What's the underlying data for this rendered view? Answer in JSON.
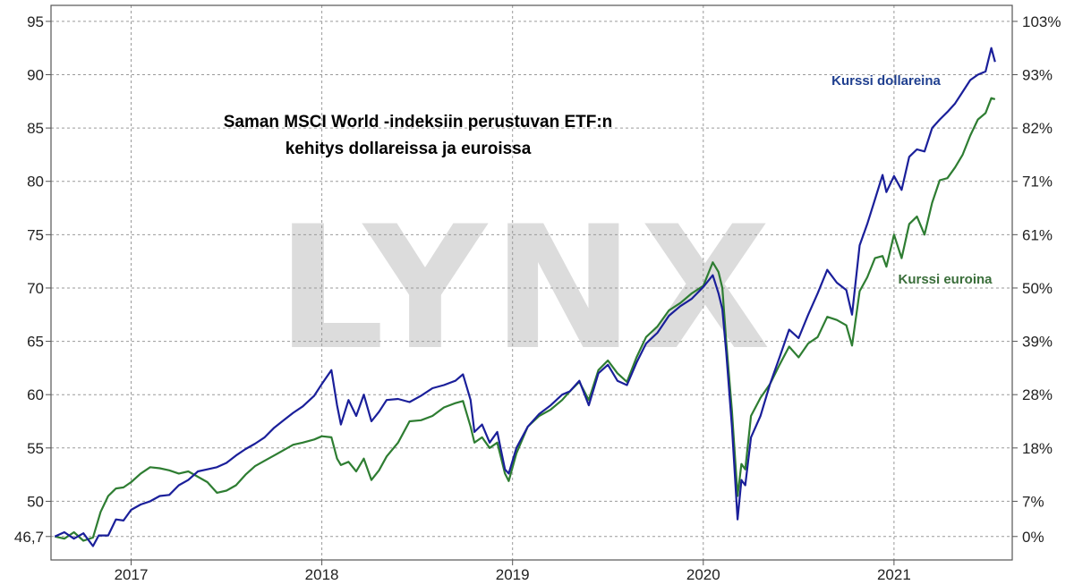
{
  "chart_data": {
    "type": "line",
    "title_line1": "Saman MSCI World -indeksiin perustuvan ETF:n",
    "title_line2": "kehitys dollareissa ja euroissa",
    "watermark": "LYNX",
    "x_ticks": [
      "2017",
      "2018",
      "2019",
      "2020",
      "2021"
    ],
    "y_left_ticks": [
      "95",
      "90",
      "85",
      "80",
      "75",
      "70",
      "65",
      "60",
      "55",
      "50",
      "46,7"
    ],
    "y_right_ticks": [
      "103%",
      "93%",
      "82%",
      "71%",
      "61%",
      "50%",
      "39%",
      "28%",
      "18%",
      "7%",
      "0%"
    ],
    "xlim": [
      2016.58,
      2021.62
    ],
    "ylim": [
      44.5,
      96.5
    ],
    "grid": true,
    "colors": {
      "usd": "#1a1f9a",
      "eur": "#2e7d32",
      "usd_label": "#1f3f8f",
      "eur_label": "#3a6e3a"
    },
    "series": [
      {
        "name": "Kurssi dollareina",
        "points": [
          [
            2016.6,
            46.7
          ],
          [
            2016.65,
            47.1
          ],
          [
            2016.7,
            46.5
          ],
          [
            2016.75,
            47.0
          ],
          [
            2016.8,
            45.8
          ],
          [
            2016.83,
            46.8
          ],
          [
            2016.88,
            46.8
          ],
          [
            2016.92,
            48.3
          ],
          [
            2016.96,
            48.2
          ],
          [
            2017.0,
            49.2
          ],
          [
            2017.05,
            49.7
          ],
          [
            2017.1,
            50.0
          ],
          [
            2017.15,
            50.5
          ],
          [
            2017.2,
            50.6
          ],
          [
            2017.25,
            51.5
          ],
          [
            2017.3,
            52.0
          ],
          [
            2017.35,
            52.8
          ],
          [
            2017.4,
            53.0
          ],
          [
            2017.45,
            53.2
          ],
          [
            2017.5,
            53.6
          ],
          [
            2017.55,
            54.3
          ],
          [
            2017.6,
            54.9
          ],
          [
            2017.65,
            55.4
          ],
          [
            2017.7,
            56.0
          ],
          [
            2017.75,
            56.9
          ],
          [
            2017.8,
            57.6
          ],
          [
            2017.85,
            58.3
          ],
          [
            2017.9,
            58.9
          ],
          [
            2017.96,
            59.9
          ],
          [
            2018.0,
            61.0
          ],
          [
            2018.05,
            62.3
          ],
          [
            2018.08,
            59.0
          ],
          [
            2018.1,
            57.2
          ],
          [
            2018.14,
            59.5
          ],
          [
            2018.18,
            58.0
          ],
          [
            2018.22,
            60.0
          ],
          [
            2018.26,
            57.5
          ],
          [
            2018.3,
            58.4
          ],
          [
            2018.34,
            59.5
          ],
          [
            2018.4,
            59.6
          ],
          [
            2018.46,
            59.3
          ],
          [
            2018.52,
            59.9
          ],
          [
            2018.58,
            60.6
          ],
          [
            2018.64,
            60.9
          ],
          [
            2018.7,
            61.3
          ],
          [
            2018.74,
            61.9
          ],
          [
            2018.78,
            59.5
          ],
          [
            2018.8,
            56.5
          ],
          [
            2018.84,
            57.2
          ],
          [
            2018.88,
            55.5
          ],
          [
            2018.92,
            56.5
          ],
          [
            2018.96,
            53.0
          ],
          [
            2018.98,
            52.6
          ],
          [
            2019.02,
            55.0
          ],
          [
            2019.08,
            57.0
          ],
          [
            2019.14,
            58.2
          ],
          [
            2019.2,
            59.0
          ],
          [
            2019.26,
            60.0
          ],
          [
            2019.3,
            60.3
          ],
          [
            2019.35,
            61.3
          ],
          [
            2019.4,
            59.0
          ],
          [
            2019.45,
            62.0
          ],
          [
            2019.5,
            62.8
          ],
          [
            2019.55,
            61.3
          ],
          [
            2019.6,
            60.9
          ],
          [
            2019.65,
            63.0
          ],
          [
            2019.7,
            64.8
          ],
          [
            2019.76,
            65.8
          ],
          [
            2019.82,
            67.4
          ],
          [
            2019.88,
            68.3
          ],
          [
            2019.94,
            69.0
          ],
          [
            2020.0,
            70.1
          ],
          [
            2020.05,
            71.2
          ],
          [
            2020.08,
            69.5
          ],
          [
            2020.1,
            68.0
          ],
          [
            2020.12,
            64.0
          ],
          [
            2020.15,
            57.0
          ],
          [
            2020.18,
            48.3
          ],
          [
            2020.2,
            52.0
          ],
          [
            2020.22,
            51.5
          ],
          [
            2020.25,
            56.0
          ],
          [
            2020.3,
            58.0
          ],
          [
            2020.35,
            61.0
          ],
          [
            2020.4,
            63.5
          ],
          [
            2020.45,
            66.1
          ],
          [
            2020.5,
            65.3
          ],
          [
            2020.55,
            67.5
          ],
          [
            2020.6,
            69.5
          ],
          [
            2020.65,
            71.7
          ],
          [
            2020.7,
            70.5
          ],
          [
            2020.75,
            69.8
          ],
          [
            2020.78,
            67.5
          ],
          [
            2020.82,
            74.0
          ],
          [
            2020.86,
            76.0
          ],
          [
            2020.9,
            78.3
          ],
          [
            2020.94,
            80.6
          ],
          [
            2020.96,
            79.0
          ],
          [
            2021.0,
            80.5
          ],
          [
            2021.04,
            79.2
          ],
          [
            2021.08,
            82.3
          ],
          [
            2021.12,
            83.0
          ],
          [
            2021.16,
            82.8
          ],
          [
            2021.2,
            85.0
          ],
          [
            2021.24,
            85.8
          ],
          [
            2021.28,
            86.5
          ],
          [
            2021.32,
            87.3
          ],
          [
            2021.36,
            88.4
          ],
          [
            2021.4,
            89.5
          ],
          [
            2021.44,
            90.0
          ],
          [
            2021.48,
            90.3
          ],
          [
            2021.51,
            92.5
          ],
          [
            2021.53,
            91.2
          ]
        ]
      },
      {
        "name": "Kurssi euroina",
        "points": [
          [
            2016.6,
            46.7
          ],
          [
            2016.65,
            46.5
          ],
          [
            2016.7,
            47.1
          ],
          [
            2016.75,
            46.3
          ],
          [
            2016.8,
            46.6
          ],
          [
            2016.84,
            49.0
          ],
          [
            2016.88,
            50.5
          ],
          [
            2016.92,
            51.2
          ],
          [
            2016.96,
            51.3
          ],
          [
            2017.0,
            51.8
          ],
          [
            2017.05,
            52.6
          ],
          [
            2017.1,
            53.2
          ],
          [
            2017.15,
            53.1
          ],
          [
            2017.2,
            52.9
          ],
          [
            2017.25,
            52.6
          ],
          [
            2017.3,
            52.8
          ],
          [
            2017.35,
            52.3
          ],
          [
            2017.4,
            51.8
          ],
          [
            2017.45,
            50.8
          ],
          [
            2017.5,
            51.0
          ],
          [
            2017.55,
            51.5
          ],
          [
            2017.6,
            52.5
          ],
          [
            2017.65,
            53.3
          ],
          [
            2017.7,
            53.8
          ],
          [
            2017.75,
            54.3
          ],
          [
            2017.8,
            54.8
          ],
          [
            2017.85,
            55.3
          ],
          [
            2017.9,
            55.5
          ],
          [
            2017.96,
            55.8
          ],
          [
            2018.0,
            56.1
          ],
          [
            2018.05,
            56.0
          ],
          [
            2018.08,
            54.0
          ],
          [
            2018.1,
            53.4
          ],
          [
            2018.14,
            53.7
          ],
          [
            2018.18,
            52.8
          ],
          [
            2018.22,
            54.0
          ],
          [
            2018.26,
            52.0
          ],
          [
            2018.3,
            52.9
          ],
          [
            2018.34,
            54.2
          ],
          [
            2018.4,
            55.5
          ],
          [
            2018.46,
            57.5
          ],
          [
            2018.52,
            57.6
          ],
          [
            2018.58,
            58.0
          ],
          [
            2018.64,
            58.8
          ],
          [
            2018.7,
            59.2
          ],
          [
            2018.74,
            59.4
          ],
          [
            2018.78,
            57.0
          ],
          [
            2018.8,
            55.5
          ],
          [
            2018.84,
            56.0
          ],
          [
            2018.88,
            55.0
          ],
          [
            2018.92,
            55.5
          ],
          [
            2018.96,
            52.6
          ],
          [
            2018.98,
            51.9
          ],
          [
            2019.02,
            54.5
          ],
          [
            2019.08,
            57.0
          ],
          [
            2019.14,
            58.0
          ],
          [
            2019.2,
            58.6
          ],
          [
            2019.26,
            59.5
          ],
          [
            2019.3,
            60.3
          ],
          [
            2019.35,
            61.2
          ],
          [
            2019.4,
            59.5
          ],
          [
            2019.45,
            62.3
          ],
          [
            2019.5,
            63.2
          ],
          [
            2019.55,
            62.0
          ],
          [
            2019.6,
            61.2
          ],
          [
            2019.65,
            63.5
          ],
          [
            2019.7,
            65.4
          ],
          [
            2019.76,
            66.4
          ],
          [
            2019.82,
            67.9
          ],
          [
            2019.88,
            68.6
          ],
          [
            2019.94,
            69.5
          ],
          [
            2020.0,
            70.2
          ],
          [
            2020.05,
            72.4
          ],
          [
            2020.08,
            71.5
          ],
          [
            2020.1,
            70.0
          ],
          [
            2020.12,
            65.0
          ],
          [
            2020.15,
            58.5
          ],
          [
            2020.18,
            50.5
          ],
          [
            2020.2,
            53.5
          ],
          [
            2020.22,
            53.0
          ],
          [
            2020.25,
            58.0
          ],
          [
            2020.3,
            59.7
          ],
          [
            2020.35,
            61.0
          ],
          [
            2020.4,
            62.8
          ],
          [
            2020.45,
            64.5
          ],
          [
            2020.5,
            63.5
          ],
          [
            2020.55,
            64.8
          ],
          [
            2020.6,
            65.4
          ],
          [
            2020.65,
            67.3
          ],
          [
            2020.7,
            67.0
          ],
          [
            2020.75,
            66.5
          ],
          [
            2020.78,
            64.6
          ],
          [
            2020.82,
            69.7
          ],
          [
            2020.86,
            71.0
          ],
          [
            2020.9,
            72.8
          ],
          [
            2020.94,
            73.0
          ],
          [
            2020.96,
            72.0
          ],
          [
            2021.0,
            75.0
          ],
          [
            2021.04,
            72.8
          ],
          [
            2021.08,
            76.0
          ],
          [
            2021.12,
            76.7
          ],
          [
            2021.16,
            75.0
          ],
          [
            2021.2,
            78.0
          ],
          [
            2021.24,
            80.1
          ],
          [
            2021.28,
            80.3
          ],
          [
            2021.32,
            81.3
          ],
          [
            2021.36,
            82.5
          ],
          [
            2021.4,
            84.3
          ],
          [
            2021.44,
            85.8
          ],
          [
            2021.48,
            86.4
          ],
          [
            2021.51,
            87.8
          ],
          [
            2021.53,
            87.7
          ]
        ]
      }
    ]
  }
}
